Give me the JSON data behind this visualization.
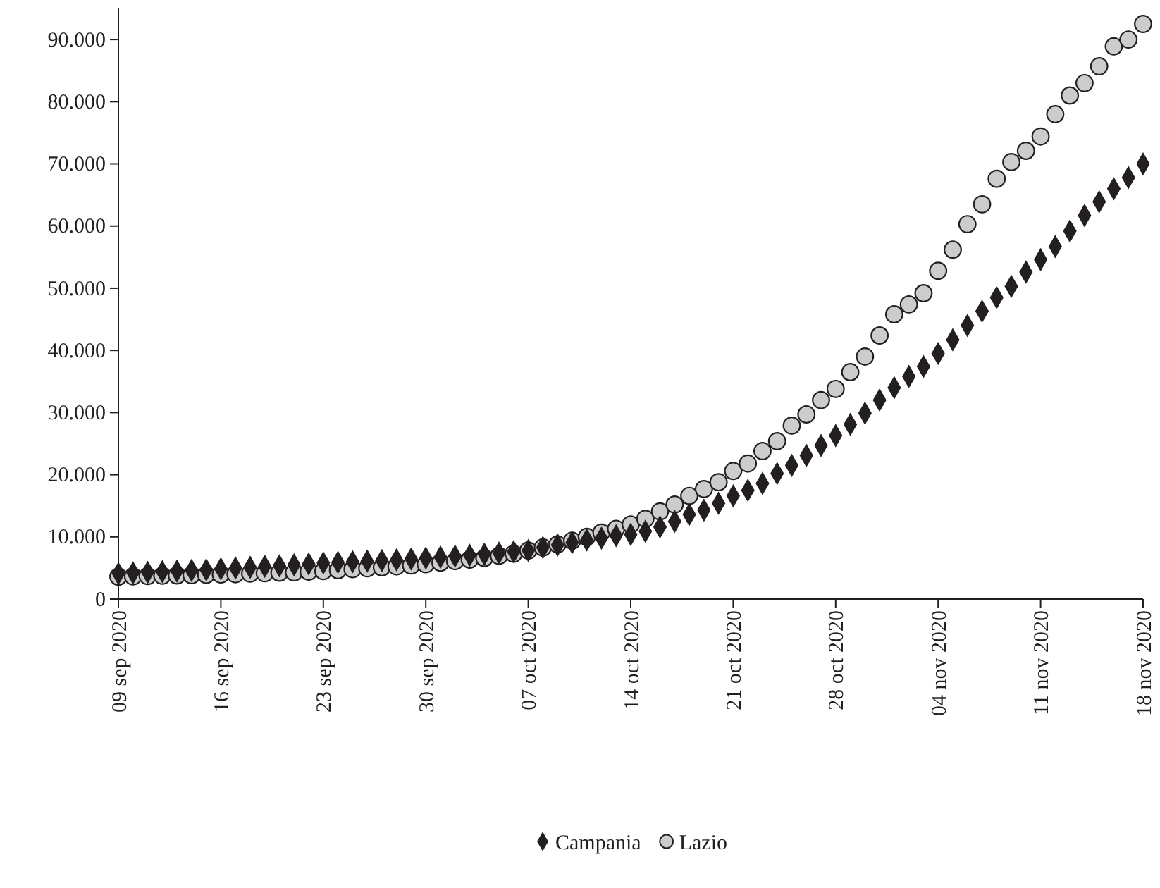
{
  "chart_data": {
    "type": "scatter",
    "x": [
      "2020-09-09",
      "2020-09-10",
      "2020-09-11",
      "2020-09-12",
      "2020-09-13",
      "2020-09-14",
      "2020-09-15",
      "2020-09-16",
      "2020-09-17",
      "2020-09-18",
      "2020-09-19",
      "2020-09-20",
      "2020-09-21",
      "2020-09-22",
      "2020-09-23",
      "2020-09-24",
      "2020-09-25",
      "2020-09-26",
      "2020-09-27",
      "2020-09-28",
      "2020-09-29",
      "2020-09-30",
      "2020-10-01",
      "2020-10-02",
      "2020-10-03",
      "2020-10-04",
      "2020-10-05",
      "2020-10-06",
      "2020-10-07",
      "2020-10-08",
      "2020-10-09",
      "2020-10-10",
      "2020-10-11",
      "2020-10-12",
      "2020-10-13",
      "2020-10-14",
      "2020-10-15",
      "2020-10-16",
      "2020-10-17",
      "2020-10-18",
      "2020-10-19",
      "2020-10-20",
      "2020-10-21",
      "2020-10-22",
      "2020-10-23",
      "2020-10-24",
      "2020-10-25",
      "2020-10-26",
      "2020-10-27",
      "2020-10-28",
      "2020-10-29",
      "2020-10-30",
      "2020-10-31",
      "2020-11-01",
      "2020-11-02",
      "2020-11-03",
      "2020-11-04",
      "2020-11-05",
      "2020-11-06",
      "2020-11-07",
      "2020-11-08",
      "2020-11-09",
      "2020-11-10",
      "2020-11-11",
      "2020-11-12",
      "2020-11-13",
      "2020-11-14",
      "2020-11-15",
      "2020-11-16",
      "2020-11-17",
      "2020-11-18"
    ],
    "series": [
      {
        "name": "Campania",
        "color": "#231f20",
        "marker": "diamond",
        "values": [
          4100,
          4200,
          4300,
          4400,
          4500,
          4600,
          4700,
          4850,
          5000,
          5100,
          5250,
          5350,
          5500,
          5650,
          5800,
          5900,
          6000,
          6100,
          6200,
          6300,
          6450,
          6600,
          6750,
          6900,
          7050,
          7200,
          7400,
          7600,
          7800,
          8300,
          8700,
          9100,
          9500,
          9800,
          10200,
          10400,
          10900,
          11600,
          12500,
          13600,
          14300,
          15400,
          16600,
          17500,
          18600,
          20200,
          21500,
          23100,
          24700,
          26300,
          28100,
          29900,
          32000,
          34000,
          35800,
          37400,
          39500,
          41700,
          44000,
          46300,
          48500,
          50300,
          52600,
          54600,
          56700,
          59200,
          61700,
          63900,
          66000,
          67800,
          70000
        ]
      },
      {
        "name": "Lazio",
        "color": "#cccccc",
        "marker": "circle",
        "values": [
          3600,
          3650,
          3700,
          3750,
          3800,
          3850,
          3900,
          3950,
          4000,
          4100,
          4150,
          4250,
          4300,
          4400,
          4500,
          4650,
          4800,
          4950,
          5100,
          5250,
          5400,
          5600,
          5850,
          6100,
          6350,
          6600,
          6950,
          7300,
          7800,
          8300,
          8800,
          9400,
          10000,
          10700,
          11300,
          12000,
          12900,
          14100,
          15200,
          16600,
          17700,
          18800,
          20600,
          21800,
          23800,
          25400,
          27900,
          29700,
          32000,
          33800,
          36500,
          39000,
          42400,
          45800,
          47400,
          49200,
          52800,
          56200,
          60300,
          63500,
          67600,
          70300,
          72100,
          74400,
          78000,
          81000,
          83000,
          85700,
          88900,
          90000,
          92500
        ]
      }
    ],
    "xlim": [
      "2020-09-09",
      "2020-11-18"
    ],
    "xticks": [
      {
        "value": "2020-09-09",
        "label": "09 sep 2020"
      },
      {
        "value": "2020-09-16",
        "label": "16 sep 2020"
      },
      {
        "value": "2020-09-23",
        "label": "23 sep 2020"
      },
      {
        "value": "2020-09-30",
        "label": "30 sep 2020"
      },
      {
        "value": "2020-10-07",
        "label": "07 oct 2020"
      },
      {
        "value": "2020-10-14",
        "label": "14 oct 2020"
      },
      {
        "value": "2020-10-21",
        "label": "21 oct 2020"
      },
      {
        "value": "2020-10-28",
        "label": "28 oct 2020"
      },
      {
        "value": "2020-11-04",
        "label": "04 nov 2020"
      },
      {
        "value": "2020-11-11",
        "label": "11 nov 2020"
      },
      {
        "value": "2020-11-18",
        "label": "18 nov 2020"
      }
    ],
    "ylim": [
      0,
      95000
    ],
    "yticks": [
      0,
      {
        "value": 10000,
        "label": "10.000"
      },
      {
        "value": 20000,
        "label": "20.000"
      },
      {
        "value": 30000,
        "label": "30.000"
      },
      {
        "value": 40000,
        "label": "40.000"
      },
      {
        "value": 50000,
        "label": "50.000"
      },
      {
        "value": 60000,
        "label": "60.000"
      },
      {
        "value": 70000,
        "label": "70.000"
      },
      {
        "value": 80000,
        "label": "80.000"
      },
      {
        "value": 90000,
        "label": "90.000"
      }
    ],
    "grid": false,
    "legend": "bottom"
  }
}
